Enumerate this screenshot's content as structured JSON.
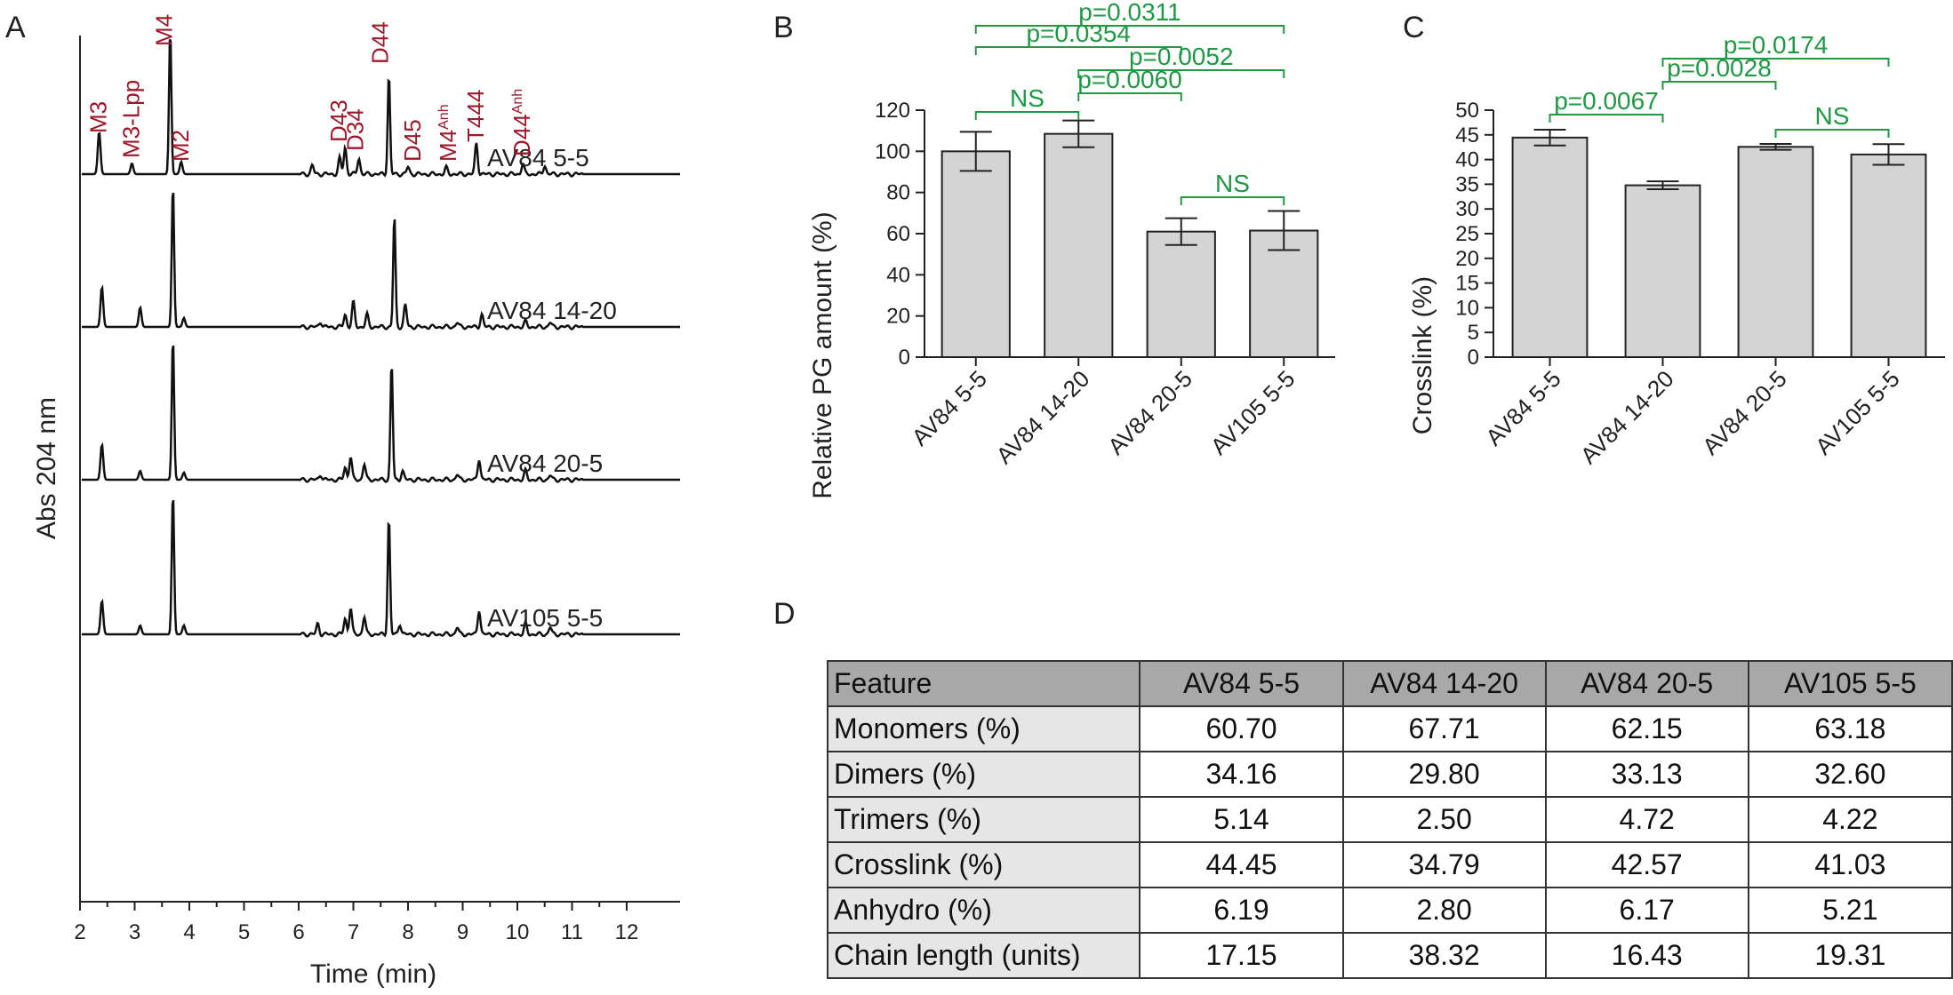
{
  "panels": {
    "A": "A",
    "B": "B",
    "C": "C",
    "D": "D"
  },
  "chart_data": [
    {
      "id": "A",
      "type": "line",
      "xlabel": "Time (min)",
      "ylabel": "Abs 204 nm",
      "xlim": [
        2,
        12.5
      ],
      "x_ticks": [
        2,
        3,
        4,
        5,
        6,
        7,
        8,
        9,
        10,
        11,
        12
      ],
      "series": [
        {
          "name": "AV84 5-5",
          "peaks": [
            {
              "t": 2.35,
              "h": 48
            },
            {
              "t": 2.95,
              "h": 12
            },
            {
              "t": 3.65,
              "h": 162
            },
            {
              "t": 3.85,
              "h": 14
            },
            {
              "t": 6.25,
              "h": 10
            },
            {
              "t": 6.75,
              "h": 18
            },
            {
              "t": 6.85,
              "h": 30
            },
            {
              "t": 7.1,
              "h": 18
            },
            {
              "t": 7.65,
              "h": 112
            },
            {
              "t": 8.0,
              "h": 8
            },
            {
              "t": 8.7,
              "h": 7
            },
            {
              "t": 9.25,
              "h": 35
            },
            {
              "t": 10.1,
              "h": 12
            },
            {
              "t": 10.5,
              "h": 10
            }
          ]
        },
        {
          "name": "AV84 14-20",
          "peaks": [
            {
              "t": 2.4,
              "h": 45
            },
            {
              "t": 3.1,
              "h": 22
            },
            {
              "t": 3.7,
              "h": 160
            },
            {
              "t": 3.9,
              "h": 10
            },
            {
              "t": 6.4,
              "h": 6
            },
            {
              "t": 6.85,
              "h": 14
            },
            {
              "t": 7.0,
              "h": 28
            },
            {
              "t": 7.25,
              "h": 14
            },
            {
              "t": 7.75,
              "h": 125
            },
            {
              "t": 7.95,
              "h": 25
            },
            {
              "t": 8.9,
              "h": 5
            },
            {
              "t": 9.35,
              "h": 14
            },
            {
              "t": 10.15,
              "h": 6
            },
            {
              "t": 10.6,
              "h": 5
            }
          ]
        },
        {
          "name": "AV84 20-5",
          "peaks": [
            {
              "t": 2.4,
              "h": 40
            },
            {
              "t": 3.1,
              "h": 10
            },
            {
              "t": 3.7,
              "h": 160
            },
            {
              "t": 3.9,
              "h": 8
            },
            {
              "t": 6.4,
              "h": 6
            },
            {
              "t": 6.85,
              "h": 14
            },
            {
              "t": 6.95,
              "h": 26
            },
            {
              "t": 7.2,
              "h": 18
            },
            {
              "t": 7.7,
              "h": 132
            },
            {
              "t": 7.9,
              "h": 10
            },
            {
              "t": 8.9,
              "h": 6
            },
            {
              "t": 9.3,
              "h": 24
            },
            {
              "t": 10.15,
              "h": 10
            },
            {
              "t": 10.6,
              "h": 5
            }
          ]
        },
        {
          "name": "AV105 5-5",
          "peaks": [
            {
              "t": 2.4,
              "h": 38
            },
            {
              "t": 3.1,
              "h": 10
            },
            {
              "t": 3.7,
              "h": 160
            },
            {
              "t": 3.9,
              "h": 10
            },
            {
              "t": 6.35,
              "h": 12
            },
            {
              "t": 6.85,
              "h": 18
            },
            {
              "t": 6.95,
              "h": 30
            },
            {
              "t": 7.2,
              "h": 20
            },
            {
              "t": 7.65,
              "h": 132
            },
            {
              "t": 7.85,
              "h": 12
            },
            {
              "t": 8.9,
              "h": 8
            },
            {
              "t": 9.3,
              "h": 28
            },
            {
              "t": 10.15,
              "h": 12
            },
            {
              "t": 10.6,
              "h": 8
            }
          ]
        }
      ],
      "peak_labels": [
        {
          "text": "M3",
          "t": 2.35
        },
        {
          "text": "M3-Lpp",
          "t": 2.95
        },
        {
          "text": "M4",
          "t": 3.55
        },
        {
          "text": "M2",
          "t": 3.85
        },
        {
          "text": "D43",
          "t": 6.75
        },
        {
          "text": "D34",
          "t": 7.05
        },
        {
          "text": "D44",
          "t": 7.5
        },
        {
          "text": "D45",
          "t": 8.1
        },
        {
          "text": "M4",
          "sup": "Anh",
          "t": 8.75
        },
        {
          "text": "T444",
          "t": 9.25
        },
        {
          "text": "D44",
          "sup": "Anh",
          "t": 10.1
        }
      ]
    },
    {
      "id": "B",
      "type": "bar",
      "ylabel": "Relative PG amount (%)",
      "ylim": [
        0,
        120
      ],
      "y_ticks": [
        0,
        20,
        40,
        60,
        80,
        100,
        120
      ],
      "categories": [
        "AV84 5-5",
        "AV84 14-20",
        "AV84 20-5",
        "AV105 5-5"
      ],
      "values": [
        100,
        108.5,
        61,
        61.5
      ],
      "errors": [
        9.5,
        6.5,
        6.5,
        9.5
      ],
      "significance": [
        {
          "from": 0,
          "to": 1,
          "label": "NS",
          "level": 1
        },
        {
          "from": 1,
          "to": 2,
          "label": "p=0.0060",
          "level": 2
        },
        {
          "from": 1,
          "to": 3,
          "label": "p=0.0052",
          "level": 3
        },
        {
          "from": 0,
          "to": 2,
          "label": "p=0.0354",
          "level": 4
        },
        {
          "from": 0,
          "to": 3,
          "label": "p=0.0311",
          "level": 5
        },
        {
          "from": 2,
          "to": 3,
          "label": "NS",
          "level": 0
        }
      ]
    },
    {
      "id": "C",
      "type": "bar",
      "ylabel": "Crosslink (%)",
      "ylim": [
        0,
        50
      ],
      "y_ticks": [
        0,
        5,
        10,
        15,
        20,
        25,
        30,
        35,
        40,
        45,
        50
      ],
      "categories": [
        "AV84 5-5",
        "AV84 14-20",
        "AV84 20-5",
        "AV105 5-5"
      ],
      "values": [
        44.45,
        34.79,
        42.57,
        41.03
      ],
      "errors": [
        1.6,
        0.8,
        0.6,
        2.1
      ],
      "significance": [
        {
          "from": 0,
          "to": 1,
          "label": "p=0.0067",
          "level": 1
        },
        {
          "from": 1,
          "to": 2,
          "label": "p=0.0028",
          "level": 2
        },
        {
          "from": 1,
          "to": 3,
          "label": "p=0.0174",
          "level": 3
        },
        {
          "from": 2,
          "to": 3,
          "label": "NS",
          "level": 0
        }
      ]
    }
  ],
  "table": {
    "headers": [
      "Feature",
      "AV84 5-5",
      "AV84 14-20",
      "AV84 20-5",
      "AV105 5-5"
    ],
    "rows": [
      [
        "Monomers (%)",
        "60.70",
        "67.71",
        "62.15",
        "63.18"
      ],
      [
        "Dimers (%)",
        "34.16",
        "29.80",
        "33.13",
        "32.60"
      ],
      [
        "Trimers (%)",
        "5.14",
        "2.50",
        "4.72",
        "4.22"
      ],
      [
        "Crosslink (%)",
        "44.45",
        "34.79",
        "42.57",
        "41.03"
      ],
      [
        "Anhydro (%)",
        "6.19",
        "2.80",
        "6.17",
        "5.21"
      ],
      [
        "Chain length (units)",
        "17.15",
        "38.32",
        "16.43",
        "19.31"
      ]
    ]
  },
  "colors": {
    "peak_label": "#a0172a",
    "significance": "#1e9a43",
    "bar_fill": "#d4d4d4",
    "header_bg": "#a8a8a8"
  }
}
